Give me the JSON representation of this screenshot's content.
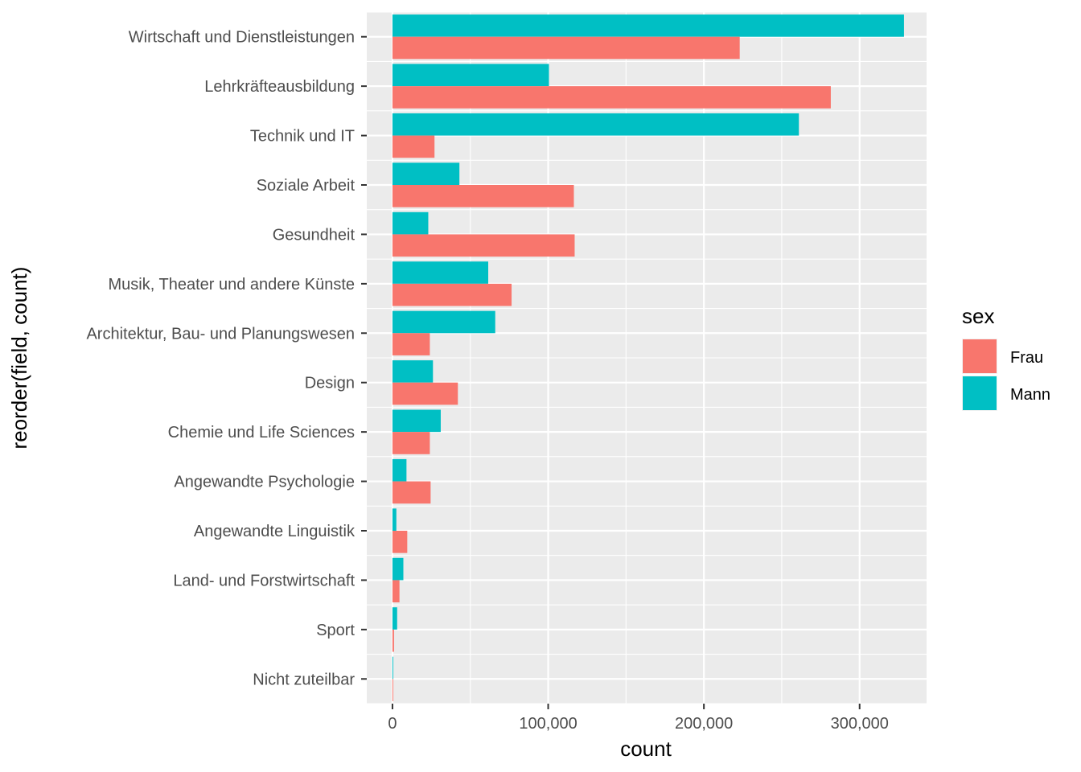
{
  "chart_data": {
    "type": "bar",
    "orientation": "horizontal",
    "xlabel": "count",
    "ylabel": "reorder(field, count)",
    "xlim": [
      -16500,
      343000
    ],
    "x_ticks": [
      0,
      100000,
      200000,
      300000
    ],
    "x_tick_labels": [
      "0",
      "100,000",
      "200,000",
      "300,000"
    ],
    "grid": true,
    "legend_title": "sex",
    "legend_position": "right",
    "categories": [
      "Wirtschaft und Dienstleistungen",
      "Lehrkräfteausbildung",
      "Technik und IT",
      "Soziale Arbeit",
      "Gesundheit",
      "Musik, Theater und andere Künste",
      "Architektur, Bau- und Planungswesen",
      "Design",
      "Chemie und Life Sciences",
      "Angewandte Psychologie",
      "Angewandte Linguistik",
      "Land- und Forstwirtschaft",
      "Sport",
      "Nicht zuteilbar"
    ],
    "series": [
      {
        "name": "Frau",
        "color": "#F8766D",
        "values": [
          223000,
          281500,
          27000,
          116500,
          117000,
          76500,
          24000,
          42000,
          24000,
          24500,
          9500,
          4500,
          1000,
          500
        ]
      },
      {
        "name": "Mann",
        "color": "#00BFC4",
        "values": [
          328500,
          100500,
          261000,
          43000,
          23000,
          61500,
          66000,
          26000,
          31000,
          9000,
          2500,
          7000,
          3000,
          500
        ]
      }
    ]
  }
}
